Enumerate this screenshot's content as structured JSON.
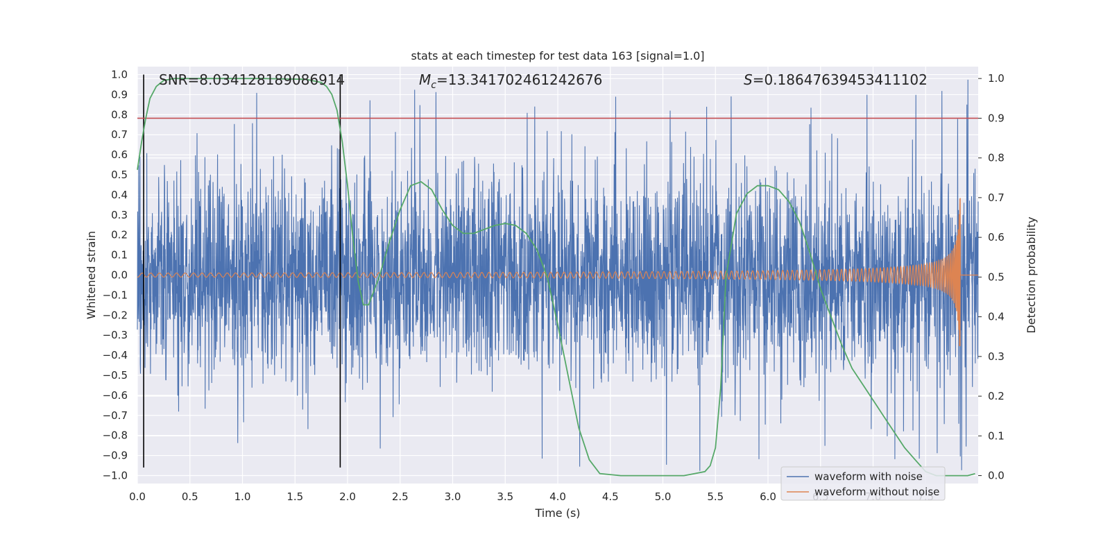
{
  "chart_data": {
    "type": "line",
    "title": "stats at each timestep for test data 163 [signal=1.0]",
    "xlabel": "Time (s)",
    "ylabel": "Whitened strain",
    "y2label": "Detection probability",
    "xlim": [
      0.0,
      8.0
    ],
    "ylim": [
      -1.04,
      1.04
    ],
    "y2lim": [
      -0.02,
      1.03
    ],
    "xticks": [
      "0.0",
      "0.5",
      "1.0",
      "1.5",
      "2.0",
      "2.5",
      "3.0",
      "3.5",
      "4.0",
      "4.5",
      "5.0",
      "5.5",
      "6.0",
      "6.5",
      "7.0",
      "7.5"
    ],
    "xtick_values": [
      0,
      0.5,
      1,
      1.5,
      2,
      2.5,
      3,
      3.5,
      4,
      4.5,
      5,
      5.5,
      6,
      6.5,
      7,
      7.5
    ],
    "yticks": [
      "1.0",
      "0.9",
      "0.8",
      "0.7",
      "0.6",
      "0.5",
      "0.4",
      "0.3",
      "0.2",
      "0.1",
      "0.0",
      "−0.1",
      "−0.2",
      "−0.3",
      "−0.4",
      "−0.5",
      "−0.6",
      "−0.7",
      "−0.8",
      "−0.9",
      "−1.0"
    ],
    "ytick_values": [
      1.0,
      0.9,
      0.8,
      0.7,
      0.6,
      0.5,
      0.4,
      0.3,
      0.2,
      0.1,
      0.0,
      -0.1,
      -0.2,
      -0.3,
      -0.4,
      -0.5,
      -0.6,
      -0.7,
      -0.8,
      -0.9,
      -1.0
    ],
    "y2ticks": [
      "1.0",
      "0.9",
      "0.8",
      "0.7",
      "0.6",
      "0.5",
      "0.4",
      "0.3",
      "0.2",
      "0.1",
      "0.0"
    ],
    "y2tick_values": [
      1.0,
      0.9,
      0.8,
      0.7,
      0.6,
      0.5,
      0.4,
      0.3,
      0.2,
      0.1,
      0.0
    ],
    "annotations": {
      "snr": "SNR=8.034128189086914",
      "mc_symbol": "M",
      "mc_sub": "c",
      "mc_value": "=13.341702461242676",
      "s_symbol": "S",
      "s_value": "=0.18647639453411102"
    },
    "threshold": {
      "value": 0.9,
      "axis": "y2",
      "color": "#c44e52"
    },
    "vertical_markers": [
      0.06,
      1.93
    ],
    "noise": {
      "name": "waveform with noise",
      "color": "#4c72b0",
      "typical_amplitude": 0.45,
      "max_abs": 0.98,
      "min": -0.98
    },
    "signal": {
      "name": "waveform without noise",
      "color": "#dd8452",
      "start_amplitude": 0.01,
      "peak_time": 7.82,
      "peak_value": 0.44,
      "min_value": -0.45,
      "end_time": 7.83
    },
    "probability": {
      "name": "detection probability",
      "color": "#55a868",
      "axis": "y2",
      "x": [
        0.0,
        0.04,
        0.08,
        0.12,
        0.18,
        0.25,
        0.35,
        0.5,
        0.8,
        1.2,
        1.6,
        1.75,
        1.8,
        1.85,
        1.9,
        1.95,
        2.0,
        2.05,
        2.1,
        2.15,
        2.2,
        2.3,
        2.4,
        2.5,
        2.6,
        2.7,
        2.8,
        2.9,
        3.0,
        3.1,
        3.2,
        3.3,
        3.4,
        3.5,
        3.6,
        3.7,
        3.8,
        3.9,
        4.0,
        4.1,
        4.2,
        4.3,
        4.4,
        4.6,
        5.0,
        5.2,
        5.3,
        5.4,
        5.45,
        5.5,
        5.55,
        5.6,
        5.7,
        5.8,
        5.9,
        6.0,
        6.1,
        6.2,
        6.3,
        6.4,
        6.5,
        6.6,
        6.7,
        6.8,
        6.9,
        7.0,
        7.1,
        7.2,
        7.3,
        7.4,
        7.5,
        7.6,
        7.7,
        7.8,
        7.9,
        7.97
      ],
      "y": [
        0.77,
        0.84,
        0.9,
        0.95,
        0.98,
        0.995,
        1.0,
        1.0,
        1.0,
        1.0,
        0.998,
        0.99,
        0.98,
        0.96,
        0.92,
        0.84,
        0.73,
        0.6,
        0.49,
        0.43,
        0.43,
        0.5,
        0.59,
        0.67,
        0.73,
        0.74,
        0.72,
        0.67,
        0.63,
        0.61,
        0.61,
        0.62,
        0.63,
        0.635,
        0.63,
        0.61,
        0.57,
        0.5,
        0.38,
        0.25,
        0.12,
        0.04,
        0.005,
        0.0,
        0.0,
        0.0,
        0.005,
        0.01,
        0.025,
        0.07,
        0.22,
        0.5,
        0.66,
        0.71,
        0.73,
        0.73,
        0.72,
        0.69,
        0.64,
        0.56,
        0.47,
        0.4,
        0.33,
        0.27,
        0.23,
        0.19,
        0.15,
        0.11,
        0.07,
        0.04,
        0.01,
        0.0,
        0.0,
        0.0,
        0.0,
        0.005
      ]
    },
    "legend": {
      "position": "lower-right",
      "entries": [
        {
          "label": "waveform with noise",
          "color": "#4c72b0"
        },
        {
          "label": "waveform without noise",
          "color": "#dd8452"
        }
      ]
    },
    "grid": true
  }
}
